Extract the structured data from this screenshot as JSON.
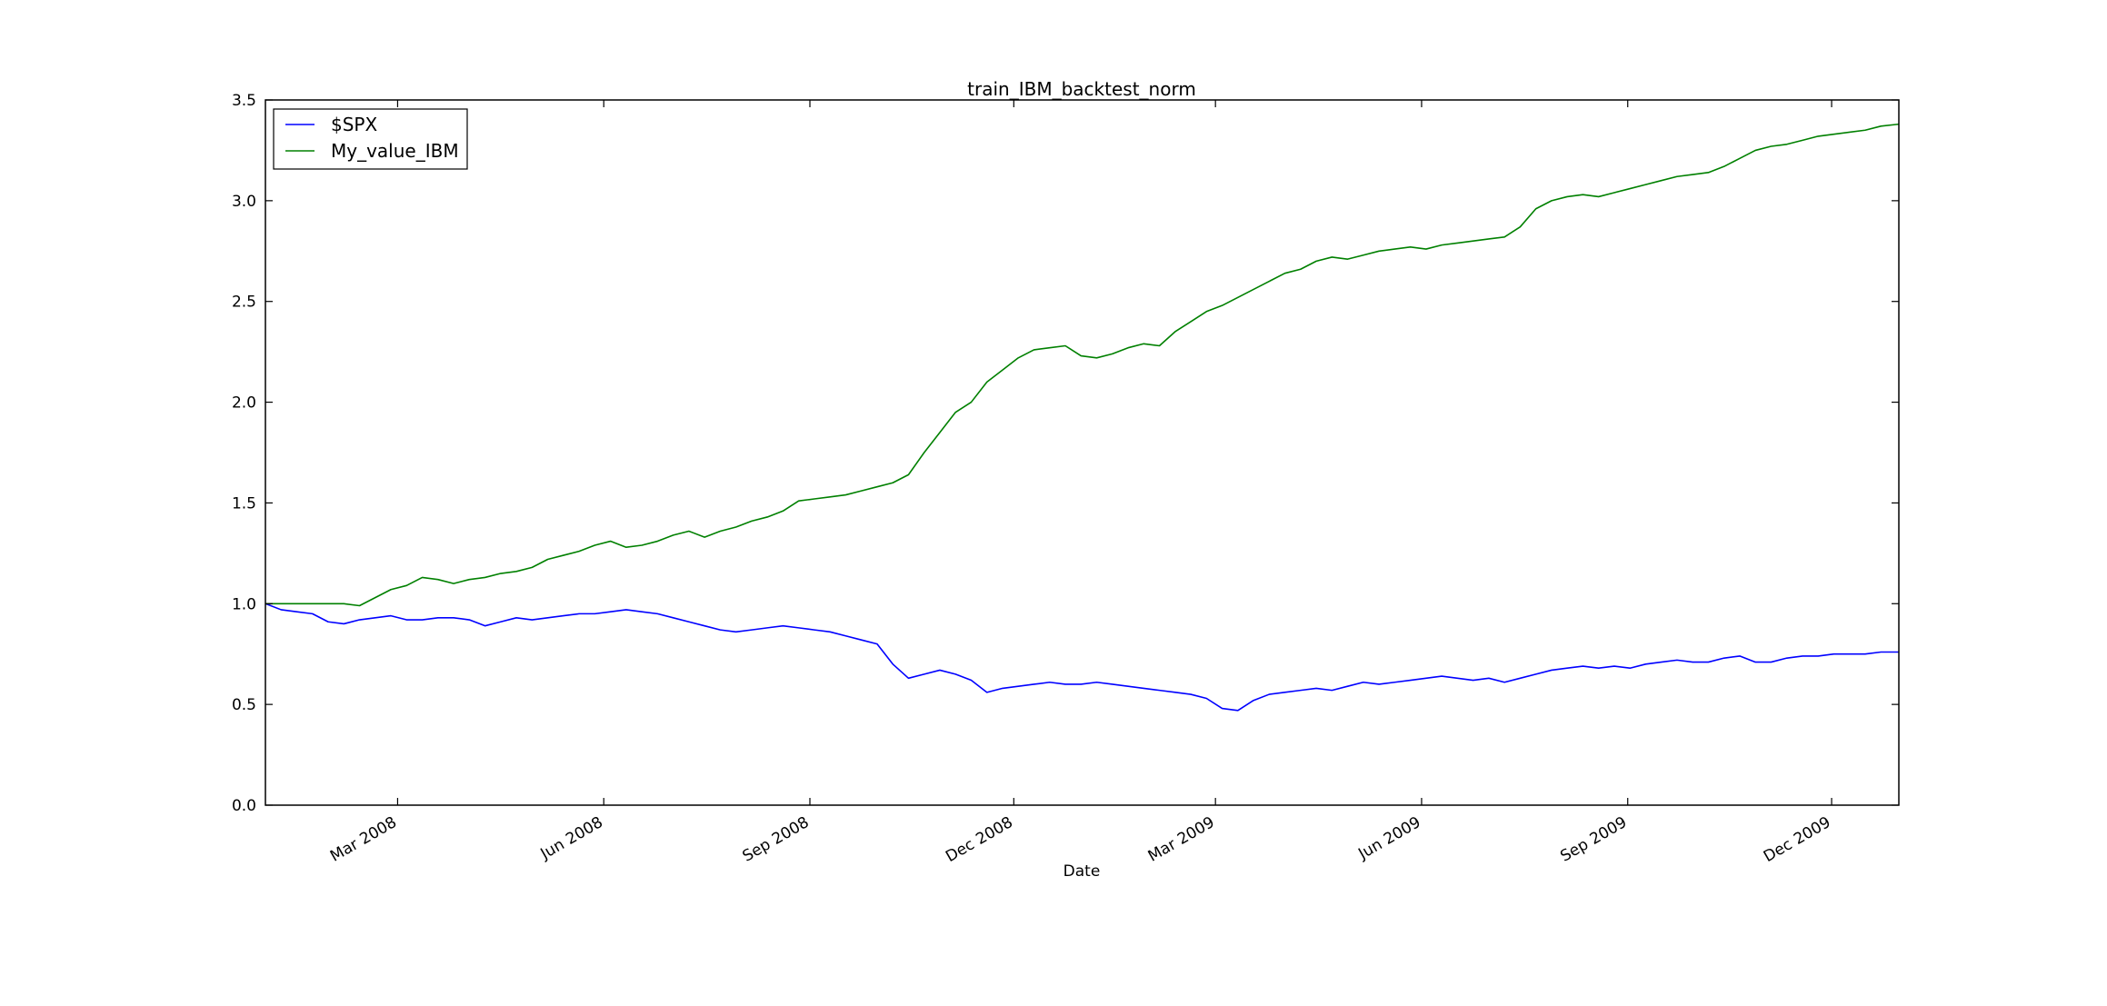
{
  "chart_data": {
    "type": "line",
    "title": "train_IBM_backtest_norm",
    "xlabel": "Date",
    "ylabel": "",
    "xlim": [
      "2008-01-02",
      "2009-12-31"
    ],
    "ylim": [
      0.0,
      3.5
    ],
    "yticks": [
      "0.0",
      "0.5",
      "1.0",
      "1.5",
      "2.0",
      "2.5",
      "3.0",
      "3.5"
    ],
    "xticks": [
      {
        "date": "2008-03-01",
        "label": "Mar 2008"
      },
      {
        "date": "2008-06-01",
        "label": "Jun 2008"
      },
      {
        "date": "2008-09-01",
        "label": "Sep 2008"
      },
      {
        "date": "2008-12-01",
        "label": "Dec 2008"
      },
      {
        "date": "2009-03-01",
        "label": "Mar 2009"
      },
      {
        "date": "2009-06-01",
        "label": "Jun 2009"
      },
      {
        "date": "2009-09-01",
        "label": "Sep 2009"
      },
      {
        "date": "2009-12-01",
        "label": "Dec 2009"
      }
    ],
    "grid": false,
    "legend_position": "top-left",
    "series": [
      {
        "name": "$SPX",
        "color": "#0000ff",
        "points": [
          [
            "2008-01-02",
            1.0
          ],
          [
            "2008-01-09",
            0.97
          ],
          [
            "2008-01-16",
            0.96
          ],
          [
            "2008-01-23",
            0.95
          ],
          [
            "2008-01-30",
            0.91
          ],
          [
            "2008-02-06",
            0.9
          ],
          [
            "2008-02-13",
            0.92
          ],
          [
            "2008-02-20",
            0.93
          ],
          [
            "2008-02-27",
            0.94
          ],
          [
            "2008-03-05",
            0.92
          ],
          [
            "2008-03-12",
            0.92
          ],
          [
            "2008-03-19",
            0.93
          ],
          [
            "2008-03-26",
            0.93
          ],
          [
            "2008-04-02",
            0.92
          ],
          [
            "2008-04-09",
            0.89
          ],
          [
            "2008-04-16",
            0.91
          ],
          [
            "2008-04-23",
            0.93
          ],
          [
            "2008-04-30",
            0.92
          ],
          [
            "2008-05-07",
            0.93
          ],
          [
            "2008-05-14",
            0.94
          ],
          [
            "2008-05-21",
            0.95
          ],
          [
            "2008-05-28",
            0.95
          ],
          [
            "2008-06-04",
            0.96
          ],
          [
            "2008-06-11",
            0.97
          ],
          [
            "2008-06-18",
            0.96
          ],
          [
            "2008-06-25",
            0.95
          ],
          [
            "2008-07-02",
            0.93
          ],
          [
            "2008-07-09",
            0.91
          ],
          [
            "2008-07-16",
            0.89
          ],
          [
            "2008-07-23",
            0.87
          ],
          [
            "2008-07-30",
            0.86
          ],
          [
            "2008-08-06",
            0.87
          ],
          [
            "2008-08-13",
            0.88
          ],
          [
            "2008-08-20",
            0.89
          ],
          [
            "2008-08-27",
            0.88
          ],
          [
            "2008-09-03",
            0.87
          ],
          [
            "2008-09-10",
            0.86
          ],
          [
            "2008-09-17",
            0.84
          ],
          [
            "2008-09-24",
            0.82
          ],
          [
            "2008-10-01",
            0.8
          ],
          [
            "2008-10-08",
            0.7
          ],
          [
            "2008-10-15",
            0.63
          ],
          [
            "2008-10-22",
            0.65
          ],
          [
            "2008-10-29",
            0.67
          ],
          [
            "2008-11-05",
            0.65
          ],
          [
            "2008-11-12",
            0.62
          ],
          [
            "2008-11-19",
            0.56
          ],
          [
            "2008-11-26",
            0.58
          ],
          [
            "2008-12-03",
            0.59
          ],
          [
            "2008-12-10",
            0.6
          ],
          [
            "2008-12-17",
            0.61
          ],
          [
            "2008-12-24",
            0.6
          ],
          [
            "2008-12-31",
            0.6
          ],
          [
            "2009-01-07",
            0.61
          ],
          [
            "2009-01-14",
            0.6
          ],
          [
            "2009-01-21",
            0.59
          ],
          [
            "2009-01-28",
            0.58
          ],
          [
            "2009-02-04",
            0.57
          ],
          [
            "2009-02-11",
            0.56
          ],
          [
            "2009-02-18",
            0.55
          ],
          [
            "2009-02-25",
            0.53
          ],
          [
            "2009-03-04",
            0.48
          ],
          [
            "2009-03-11",
            0.47
          ],
          [
            "2009-03-18",
            0.52
          ],
          [
            "2009-03-25",
            0.55
          ],
          [
            "2009-04-01",
            0.56
          ],
          [
            "2009-04-08",
            0.57
          ],
          [
            "2009-04-15",
            0.58
          ],
          [
            "2009-04-22",
            0.57
          ],
          [
            "2009-04-29",
            0.59
          ],
          [
            "2009-05-06",
            0.61
          ],
          [
            "2009-05-13",
            0.6
          ],
          [
            "2009-05-20",
            0.61
          ],
          [
            "2009-05-27",
            0.62
          ],
          [
            "2009-06-03",
            0.63
          ],
          [
            "2009-06-10",
            0.64
          ],
          [
            "2009-06-17",
            0.63
          ],
          [
            "2009-06-24",
            0.62
          ],
          [
            "2009-07-01",
            0.63
          ],
          [
            "2009-07-08",
            0.61
          ],
          [
            "2009-07-15",
            0.63
          ],
          [
            "2009-07-22",
            0.65
          ],
          [
            "2009-07-29",
            0.67
          ],
          [
            "2009-08-05",
            0.68
          ],
          [
            "2009-08-12",
            0.69
          ],
          [
            "2009-08-19",
            0.68
          ],
          [
            "2009-08-26",
            0.69
          ],
          [
            "2009-09-02",
            0.68
          ],
          [
            "2009-09-09",
            0.7
          ],
          [
            "2009-09-16",
            0.71
          ],
          [
            "2009-09-23",
            0.72
          ],
          [
            "2009-09-30",
            0.71
          ],
          [
            "2009-10-07",
            0.71
          ],
          [
            "2009-10-14",
            0.73
          ],
          [
            "2009-10-21",
            0.74
          ],
          [
            "2009-10-28",
            0.71
          ],
          [
            "2009-11-04",
            0.71
          ],
          [
            "2009-11-11",
            0.73
          ],
          [
            "2009-11-18",
            0.74
          ],
          [
            "2009-11-25",
            0.74
          ],
          [
            "2009-12-02",
            0.75
          ],
          [
            "2009-12-09",
            0.75
          ],
          [
            "2009-12-16",
            0.75
          ],
          [
            "2009-12-23",
            0.76
          ],
          [
            "2009-12-31",
            0.76
          ]
        ]
      },
      {
        "name": "My_value_IBM",
        "color": "#008000",
        "points": [
          [
            "2008-01-02",
            1.0
          ],
          [
            "2008-01-09",
            1.0
          ],
          [
            "2008-01-16",
            1.0
          ],
          [
            "2008-01-23",
            1.0
          ],
          [
            "2008-01-30",
            1.0
          ],
          [
            "2008-02-06",
            1.0
          ],
          [
            "2008-02-13",
            0.99
          ],
          [
            "2008-02-20",
            1.03
          ],
          [
            "2008-02-27",
            1.07
          ],
          [
            "2008-03-05",
            1.09
          ],
          [
            "2008-03-12",
            1.13
          ],
          [
            "2008-03-19",
            1.12
          ],
          [
            "2008-03-26",
            1.1
          ],
          [
            "2008-04-02",
            1.12
          ],
          [
            "2008-04-09",
            1.13
          ],
          [
            "2008-04-16",
            1.15
          ],
          [
            "2008-04-23",
            1.16
          ],
          [
            "2008-04-30",
            1.18
          ],
          [
            "2008-05-07",
            1.22
          ],
          [
            "2008-05-14",
            1.24
          ],
          [
            "2008-05-21",
            1.26
          ],
          [
            "2008-05-28",
            1.29
          ],
          [
            "2008-06-04",
            1.31
          ],
          [
            "2008-06-11",
            1.28
          ],
          [
            "2008-06-18",
            1.29
          ],
          [
            "2008-06-25",
            1.31
          ],
          [
            "2008-07-02",
            1.34
          ],
          [
            "2008-07-09",
            1.36
          ],
          [
            "2008-07-16",
            1.33
          ],
          [
            "2008-07-23",
            1.36
          ],
          [
            "2008-07-30",
            1.38
          ],
          [
            "2008-08-06",
            1.41
          ],
          [
            "2008-08-13",
            1.43
          ],
          [
            "2008-08-20",
            1.46
          ],
          [
            "2008-08-27",
            1.51
          ],
          [
            "2008-09-03",
            1.52
          ],
          [
            "2008-09-10",
            1.53
          ],
          [
            "2008-09-17",
            1.54
          ],
          [
            "2008-09-24",
            1.56
          ],
          [
            "2008-10-01",
            1.58
          ],
          [
            "2008-10-08",
            1.6
          ],
          [
            "2008-10-15",
            1.64
          ],
          [
            "2008-10-22",
            1.75
          ],
          [
            "2008-10-29",
            1.85
          ],
          [
            "2008-11-05",
            1.95
          ],
          [
            "2008-11-12",
            2.0
          ],
          [
            "2008-11-19",
            2.1
          ],
          [
            "2008-11-26",
            2.16
          ],
          [
            "2008-12-03",
            2.22
          ],
          [
            "2008-12-10",
            2.26
          ],
          [
            "2008-12-17",
            2.27
          ],
          [
            "2008-12-24",
            2.28
          ],
          [
            "2008-12-31",
            2.23
          ],
          [
            "2009-01-07",
            2.22
          ],
          [
            "2009-01-14",
            2.24
          ],
          [
            "2009-01-21",
            2.27
          ],
          [
            "2009-01-28",
            2.29
          ],
          [
            "2009-02-04",
            2.28
          ],
          [
            "2009-02-11",
            2.35
          ],
          [
            "2009-02-18",
            2.4
          ],
          [
            "2009-02-25",
            2.45
          ],
          [
            "2009-03-04",
            2.48
          ],
          [
            "2009-03-11",
            2.52
          ],
          [
            "2009-03-18",
            2.56
          ],
          [
            "2009-03-25",
            2.6
          ],
          [
            "2009-04-01",
            2.64
          ],
          [
            "2009-04-08",
            2.66
          ],
          [
            "2009-04-15",
            2.7
          ],
          [
            "2009-04-22",
            2.72
          ],
          [
            "2009-04-29",
            2.71
          ],
          [
            "2009-05-06",
            2.73
          ],
          [
            "2009-05-13",
            2.75
          ],
          [
            "2009-05-20",
            2.76
          ],
          [
            "2009-05-27",
            2.77
          ],
          [
            "2009-06-03",
            2.76
          ],
          [
            "2009-06-10",
            2.78
          ],
          [
            "2009-06-17",
            2.79
          ],
          [
            "2009-06-24",
            2.8
          ],
          [
            "2009-07-01",
            2.81
          ],
          [
            "2009-07-08",
            2.82
          ],
          [
            "2009-07-15",
            2.87
          ],
          [
            "2009-07-22",
            2.96
          ],
          [
            "2009-07-29",
            3.0
          ],
          [
            "2009-08-05",
            3.02
          ],
          [
            "2009-08-12",
            3.03
          ],
          [
            "2009-08-19",
            3.02
          ],
          [
            "2009-08-26",
            3.04
          ],
          [
            "2009-09-02",
            3.06
          ],
          [
            "2009-09-09",
            3.08
          ],
          [
            "2009-09-16",
            3.1
          ],
          [
            "2009-09-23",
            3.12
          ],
          [
            "2009-09-30",
            3.13
          ],
          [
            "2009-10-07",
            3.14
          ],
          [
            "2009-10-14",
            3.17
          ],
          [
            "2009-10-21",
            3.21
          ],
          [
            "2009-10-28",
            3.25
          ],
          [
            "2009-11-04",
            3.27
          ],
          [
            "2009-11-11",
            3.28
          ],
          [
            "2009-11-18",
            3.3
          ],
          [
            "2009-11-25",
            3.32
          ],
          [
            "2009-12-02",
            3.33
          ],
          [
            "2009-12-09",
            3.34
          ],
          [
            "2009-12-16",
            3.35
          ],
          [
            "2009-12-23",
            3.37
          ],
          [
            "2009-12-31",
            3.38
          ]
        ]
      }
    ]
  }
}
